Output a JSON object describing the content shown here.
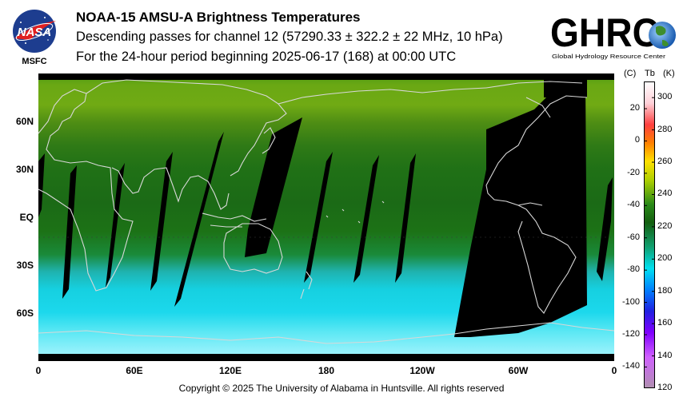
{
  "logos": {
    "left_badge_text": "NASA",
    "left_caption": "MSFC",
    "right_logo_text": "GHRC",
    "right_caption": "Global Hydrology Resource Center"
  },
  "header": {
    "title": "NOAA-15 AMSU-A Brightness Temperatures",
    "subtitle": "Descending passes for channel 12 (57290.33 ± 322.2 ± 22 MHz, 10 hPa)",
    "period": "For the 24-hour period beginning 2025-06-17 (168) at 00:00 UTC"
  },
  "map": {
    "lat_labels": [
      "60N",
      "30N",
      "EQ",
      "30S",
      "60S"
    ],
    "lat_values": [
      60,
      30,
      0,
      -30,
      -60
    ],
    "lon_labels": [
      "0",
      "60E",
      "120E",
      "180",
      "120W",
      "60W",
      "0"
    ],
    "lon_values": [
      0,
      60,
      120,
      180,
      240,
      300,
      360
    ],
    "no_data_color": "#000000",
    "coastline_color": "#d8d8d8"
  },
  "colorbar": {
    "header_c": "(C)",
    "header_tb": "Tb",
    "header_k": "(K)",
    "celsius_labels": [
      "20",
      "0",
      "-20",
      "-40",
      "-60",
      "-80",
      "-100",
      "-120",
      "-140"
    ],
    "celsius_values": [
      20,
      0,
      -20,
      -40,
      -60,
      -80,
      -100,
      -120,
      -140
    ],
    "kelvin_labels": [
      "300",
      "280",
      "260",
      "240",
      "220",
      "200",
      "180",
      "160",
      "140",
      "120"
    ],
    "kelvin_values": [
      300,
      280,
      260,
      240,
      220,
      200,
      180,
      160,
      140,
      120
    ],
    "range_k": [
      120,
      310
    ]
  },
  "footer": {
    "copyright": "Copyright © 2025 The University of Alabama in Huntsville.  All rights reserved"
  }
}
